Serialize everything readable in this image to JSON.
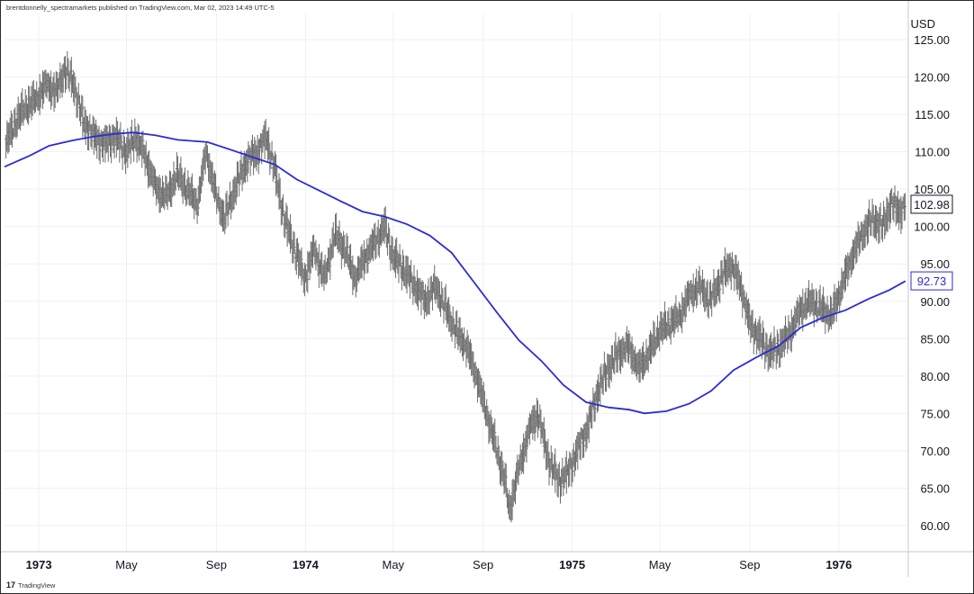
{
  "attribution": "brentdonnelly_spectramarkets published on TradingView.com, Mar 02, 2023 14:49 UTC-5",
  "brand": "TradingView",
  "colors": {
    "price": "#6b6b6b",
    "ma": "#2b2bd4",
    "grid": "#eef0f3",
    "text": "#131722",
    "axis": "#c8c8c8"
  },
  "chart_data": {
    "type": "line",
    "currency": "USD",
    "ylim": [
      56.5,
      128.5
    ],
    "y_ticks": [
      "60.00",
      "65.00",
      "70.00",
      "75.00",
      "80.00",
      "85.00",
      "90.00",
      "95.00",
      "100.00",
      "105.00",
      "110.00",
      "115.00",
      "120.00",
      "125.00"
    ],
    "x_range": [
      "1972-11-15",
      "1976-04-05"
    ],
    "x_ticks": [
      {
        "label": "1973",
        "date": "1973-01-01",
        "bold": true
      },
      {
        "label": "May",
        "date": "1973-05-01",
        "bold": false
      },
      {
        "label": "Sep",
        "date": "1973-09-01",
        "bold": false
      },
      {
        "label": "1974",
        "date": "1974-01-01",
        "bold": true
      },
      {
        "label": "May",
        "date": "1974-05-01",
        "bold": false
      },
      {
        "label": "Sep",
        "date": "1974-09-01",
        "bold": false
      },
      {
        "label": "1975",
        "date": "1975-01-01",
        "bold": true
      },
      {
        "label": "May",
        "date": "1975-05-01",
        "bold": false
      },
      {
        "label": "Sep",
        "date": "1975-09-01",
        "bold": false
      },
      {
        "label": "1976",
        "date": "1976-01-01",
        "bold": true
      }
    ],
    "series": [
      {
        "style": "ohlc-bars",
        "color": "#6b6b6b",
        "last_value": "102.98",
        "points": [
          {
            "x": "1972-11-17",
            "y": 111
          },
          {
            "x": "1972-11-30",
            "y": 114
          },
          {
            "x": "1972-12-14",
            "y": 116
          },
          {
            "x": "1972-12-28",
            "y": 117
          },
          {
            "x": "1973-01-11",
            "y": 119
          },
          {
            "x": "1973-01-25",
            "y": 118
          },
          {
            "x": "1973-02-06",
            "y": 121
          },
          {
            "x": "1973-02-18",
            "y": 119
          },
          {
            "x": "1973-03-03",
            "y": 114
          },
          {
            "x": "1973-03-18",
            "y": 112
          },
          {
            "x": "1973-04-01",
            "y": 111
          },
          {
            "x": "1973-04-15",
            "y": 112
          },
          {
            "x": "1973-05-01",
            "y": 110
          },
          {
            "x": "1973-05-14",
            "y": 112
          },
          {
            "x": "1973-05-28",
            "y": 109
          },
          {
            "x": "1973-06-11",
            "y": 105
          },
          {
            "x": "1973-06-25",
            "y": 104
          },
          {
            "x": "1973-07-09",
            "y": 107
          },
          {
            "x": "1973-07-23",
            "y": 105
          },
          {
            "x": "1973-08-06",
            "y": 103
          },
          {
            "x": "1973-08-18",
            "y": 110
          },
          {
            "x": "1973-09-01",
            "y": 104
          },
          {
            "x": "1973-09-12",
            "y": 101
          },
          {
            "x": "1973-09-30",
            "y": 106
          },
          {
            "x": "1973-10-14",
            "y": 109
          },
          {
            "x": "1973-10-28",
            "y": 110
          },
          {
            "x": "1973-11-08",
            "y": 112
          },
          {
            "x": "1973-11-19",
            "y": 108
          },
          {
            "x": "1973-12-03",
            "y": 101
          },
          {
            "x": "1973-12-17",
            "y": 97
          },
          {
            "x": "1973-12-31",
            "y": 93
          },
          {
            "x": "1974-01-13",
            "y": 97
          },
          {
            "x": "1974-01-27",
            "y": 93
          },
          {
            "x": "1974-02-10",
            "y": 99
          },
          {
            "x": "1974-02-24",
            "y": 97
          },
          {
            "x": "1974-03-10",
            "y": 93
          },
          {
            "x": "1974-03-24",
            "y": 96
          },
          {
            "x": "1974-04-07",
            "y": 98
          },
          {
            "x": "1974-04-19",
            "y": 100
          },
          {
            "x": "1974-05-01",
            "y": 96
          },
          {
            "x": "1974-05-17",
            "y": 94
          },
          {
            "x": "1974-05-31",
            "y": 92
          },
          {
            "x": "1974-06-14",
            "y": 90
          },
          {
            "x": "1974-06-28",
            "y": 92
          },
          {
            "x": "1974-07-12",
            "y": 89
          },
          {
            "x": "1974-07-26",
            "y": 86
          },
          {
            "x": "1974-08-09",
            "y": 84
          },
          {
            "x": "1974-08-23",
            "y": 80
          },
          {
            "x": "1974-09-06",
            "y": 75
          },
          {
            "x": "1974-09-20",
            "y": 70
          },
          {
            "x": "1974-10-01",
            "y": 66
          },
          {
            "x": "1974-10-07",
            "y": 62
          },
          {
            "x": "1974-10-21",
            "y": 68
          },
          {
            "x": "1974-11-04",
            "y": 73
          },
          {
            "x": "1974-11-15",
            "y": 75
          },
          {
            "x": "1974-11-29",
            "y": 69
          },
          {
            "x": "1974-12-13",
            "y": 66
          },
          {
            "x": "1974-12-26",
            "y": 67
          },
          {
            "x": "1975-01-08",
            "y": 70
          },
          {
            "x": "1975-01-22",
            "y": 73
          },
          {
            "x": "1975-02-05",
            "y": 78
          },
          {
            "x": "1975-02-19",
            "y": 81
          },
          {
            "x": "1975-03-05",
            "y": 83
          },
          {
            "x": "1975-03-19",
            "y": 84
          },
          {
            "x": "1975-04-02",
            "y": 81
          },
          {
            "x": "1975-04-16",
            "y": 83
          },
          {
            "x": "1975-04-30",
            "y": 86
          },
          {
            "x": "1975-05-14",
            "y": 87
          },
          {
            "x": "1975-05-28",
            "y": 88
          },
          {
            "x": "1975-06-11",
            "y": 91
          },
          {
            "x": "1975-06-25",
            "y": 92
          },
          {
            "x": "1975-07-09",
            "y": 90
          },
          {
            "x": "1975-07-23",
            "y": 93
          },
          {
            "x": "1975-08-06",
            "y": 95
          },
          {
            "x": "1975-08-20",
            "y": 92
          },
          {
            "x": "1975-09-01",
            "y": 87
          },
          {
            "x": "1975-09-15",
            "y": 85
          },
          {
            "x": "1975-09-29",
            "y": 83
          },
          {
            "x": "1975-10-13",
            "y": 84
          },
          {
            "x": "1975-10-27",
            "y": 86
          },
          {
            "x": "1975-11-10",
            "y": 89
          },
          {
            "x": "1975-11-24",
            "y": 90
          },
          {
            "x": "1975-12-08",
            "y": 89
          },
          {
            "x": "1975-12-22",
            "y": 88
          },
          {
            "x": "1976-01-05",
            "y": 92
          },
          {
            "x": "1976-01-19",
            "y": 96
          },
          {
            "x": "1976-02-02",
            "y": 99
          },
          {
            "x": "1976-02-16",
            "y": 101
          },
          {
            "x": "1976-03-01",
            "y": 100
          },
          {
            "x": "1976-03-12",
            "y": 103
          },
          {
            "x": "1976-03-26",
            "y": 102
          },
          {
            "x": "1976-04-01",
            "y": 103
          }
        ]
      },
      {
        "style": "line",
        "color": "#2b2bd4",
        "last_value": "92.73",
        "points": [
          {
            "x": "1972-11-15",
            "y": 108.0
          },
          {
            "x": "1972-12-20",
            "y": 109.5
          },
          {
            "x": "1973-01-15",
            "y": 110.8
          },
          {
            "x": "1973-02-15",
            "y": 111.5
          },
          {
            "x": "1973-03-15",
            "y": 112.0
          },
          {
            "x": "1973-04-15",
            "y": 112.4
          },
          {
            "x": "1973-05-10",
            "y": 112.6
          },
          {
            "x": "1973-06-10",
            "y": 112.2
          },
          {
            "x": "1973-07-10",
            "y": 111.6
          },
          {
            "x": "1973-08-20",
            "y": 111.3
          },
          {
            "x": "1973-09-20",
            "y": 110.3
          },
          {
            "x": "1973-10-20",
            "y": 109.3
          },
          {
            "x": "1973-11-20",
            "y": 108.3
          },
          {
            "x": "1973-12-20",
            "y": 106.3
          },
          {
            "x": "1974-01-20",
            "y": 104.8
          },
          {
            "x": "1974-02-20",
            "y": 103.3
          },
          {
            "x": "1974-03-20",
            "y": 102.0
          },
          {
            "x": "1974-04-20",
            "y": 101.3
          },
          {
            "x": "1974-05-20",
            "y": 100.3
          },
          {
            "x": "1974-06-20",
            "y": 98.8
          },
          {
            "x": "1974-07-20",
            "y": 96.5
          },
          {
            "x": "1974-08-20",
            "y": 92.5
          },
          {
            "x": "1974-09-20",
            "y": 88.5
          },
          {
            "x": "1974-10-20",
            "y": 84.8
          },
          {
            "x": "1974-11-20",
            "y": 82.0
          },
          {
            "x": "1974-12-20",
            "y": 78.8
          },
          {
            "x": "1975-01-20",
            "y": 76.5
          },
          {
            "x": "1975-02-20",
            "y": 75.8
          },
          {
            "x": "1975-03-20",
            "y": 75.5
          },
          {
            "x": "1975-04-10",
            "y": 75.0
          },
          {
            "x": "1975-05-10",
            "y": 75.3
          },
          {
            "x": "1975-06-10",
            "y": 76.3
          },
          {
            "x": "1975-07-10",
            "y": 78.0
          },
          {
            "x": "1975-08-10",
            "y": 80.8
          },
          {
            "x": "1975-09-10",
            "y": 82.5
          },
          {
            "x": "1975-10-10",
            "y": 84.0
          },
          {
            "x": "1975-11-10",
            "y": 86.5
          },
          {
            "x": "1975-12-10",
            "y": 87.8
          },
          {
            "x": "1976-01-10",
            "y": 88.8
          },
          {
            "x": "1976-02-10",
            "y": 90.3
          },
          {
            "x": "1976-03-10",
            "y": 91.5
          },
          {
            "x": "1976-04-01",
            "y": 92.7
          }
        ]
      }
    ]
  }
}
